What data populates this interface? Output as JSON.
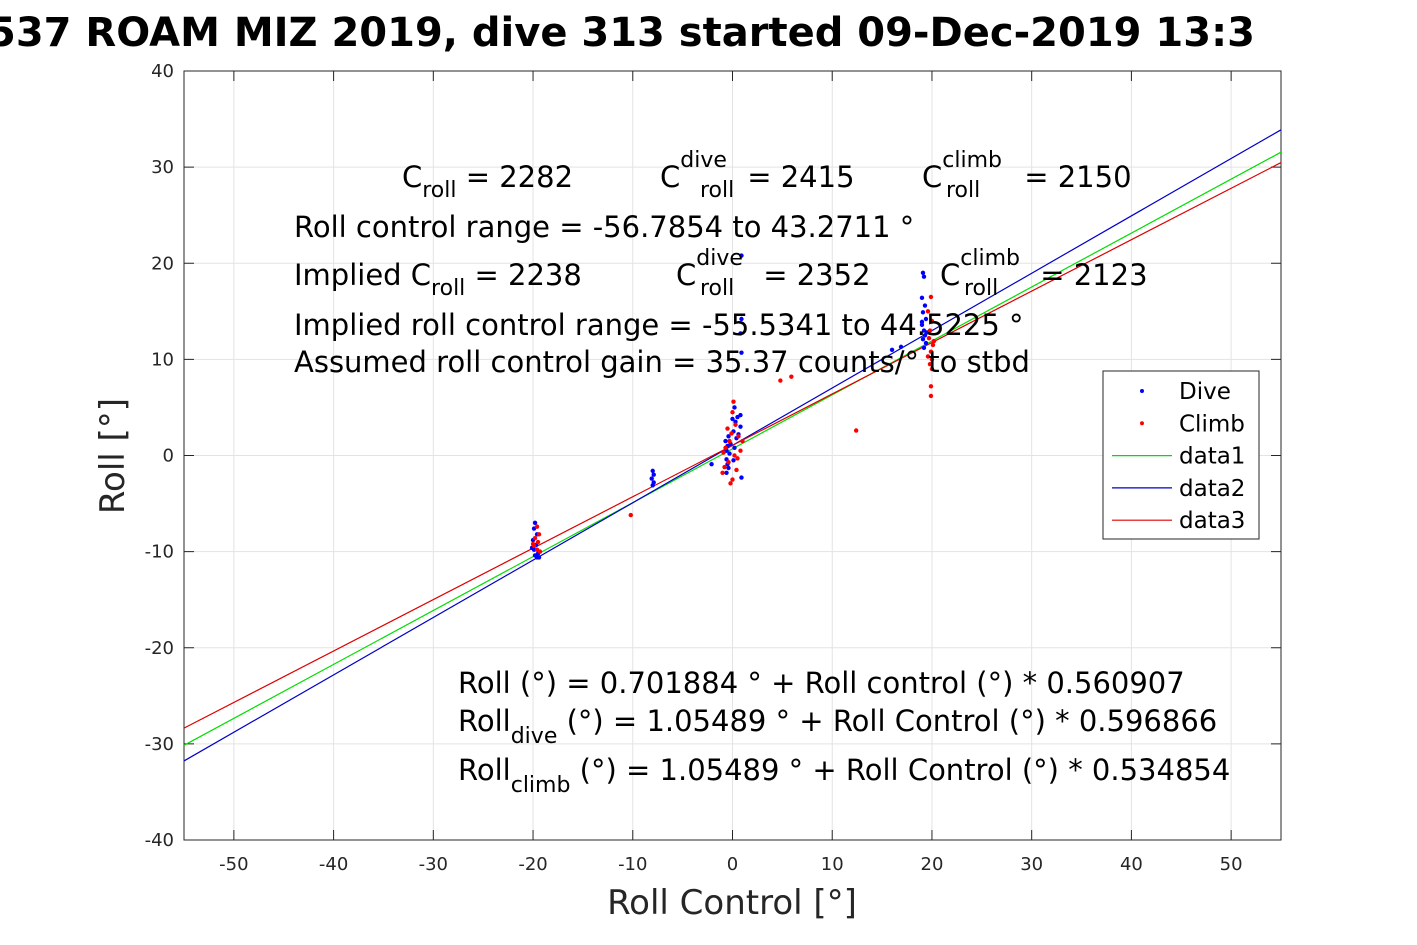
{
  "chart_data": {
    "type": "scatter",
    "title": "537 ROAM MIZ 2019, dive 313 started 09-Dec-2019 13:3",
    "xlabel": "Roll Control [°]",
    "ylabel": "Roll [°]",
    "xlim": [
      -55,
      55
    ],
    "ylim": [
      -40,
      40
    ],
    "grid": true,
    "legend_position": "right",
    "x_ticks": [
      "-50",
      "-40",
      "-30",
      "-20",
      "-10",
      "0",
      "10",
      "20",
      "30",
      "40",
      "50"
    ],
    "y_ticks": [
      "40",
      "30",
      "20",
      "10",
      "0",
      "-10",
      "-20",
      "-30",
      "-40"
    ],
    "series": [
      {
        "name": "Dive",
        "kind": "points",
        "color": "#0000ff",
        "points": [
          [
            -19.8,
            -7.0
          ],
          [
            -19.9,
            -7.6
          ],
          [
            -19.6,
            -8.2
          ],
          [
            -20.0,
            -8.8
          ],
          [
            -19.7,
            -9.3
          ],
          [
            -19.9,
            -9.8
          ],
          [
            -19.5,
            -10.2
          ],
          [
            -19.6,
            -10.6
          ],
          [
            -19.8,
            -10.4
          ],
          [
            -20.1,
            -9.6
          ],
          [
            -8.0,
            -1.6
          ],
          [
            -7.9,
            -2.0
          ],
          [
            -8.1,
            -2.4
          ],
          [
            -7.9,
            -2.8
          ],
          [
            -8.0,
            -3.1
          ],
          [
            -0.6,
            0.5
          ],
          [
            -0.5,
            1.0
          ],
          [
            -0.7,
            1.5
          ],
          [
            -0.4,
            2.0
          ],
          [
            -0.6,
            -0.4
          ],
          [
            -0.5,
            -0.9
          ],
          [
            -0.3,
            0.2
          ],
          [
            -0.2,
            1.2
          ],
          [
            -0.4,
            -1.3
          ],
          [
            -0.6,
            -1.8
          ],
          [
            0.1,
            2.5
          ],
          [
            0.3,
            3.5
          ],
          [
            0.5,
            4.0
          ],
          [
            0.2,
            5.0
          ],
          [
            0.8,
            3.0
          ],
          [
            0.9,
            -2.3
          ],
          [
            0.1,
            -0.5
          ],
          [
            0.2,
            0.8
          ],
          [
            0.4,
            1.8
          ],
          [
            0.0,
            3.8
          ],
          [
            0.6,
            2.2
          ],
          [
            0.8,
            4.2
          ],
          [
            0.9,
            20.8
          ],
          [
            0.9,
            14.2
          ],
          [
            0.8,
            12.7
          ],
          [
            0.9,
            10.7
          ],
          [
            19.1,
            19.0
          ],
          [
            19.2,
            18.6
          ],
          [
            19.0,
            16.4
          ],
          [
            19.3,
            15.6
          ],
          [
            19.1,
            14.9
          ],
          [
            19.4,
            14.2
          ],
          [
            19.0,
            13.6
          ],
          [
            19.2,
            13.0
          ],
          [
            19.3,
            12.5
          ],
          [
            19.1,
            12.1
          ],
          [
            19.4,
            11.7
          ],
          [
            19.2,
            11.2
          ],
          [
            19.0,
            13.9
          ],
          [
            19.5,
            12.8
          ],
          [
            16.0,
            11.0
          ],
          [
            16.9,
            11.3
          ],
          [
            -2.1,
            -0.9
          ],
          [
            -19.4,
            -10.6
          ]
        ]
      },
      {
        "name": "Climb",
        "kind": "points",
        "color": "#ff0000",
        "points": [
          [
            -19.6,
            -7.4
          ],
          [
            -19.4,
            -8.2
          ],
          [
            -19.8,
            -8.6
          ],
          [
            -19.5,
            -9.0
          ],
          [
            -19.9,
            -9.4
          ],
          [
            -19.6,
            -9.8
          ],
          [
            -19.3,
            -10.0
          ],
          [
            -20.0,
            -9.2
          ],
          [
            -10.2,
            -6.2
          ],
          [
            0.1,
            5.6
          ],
          [
            0.0,
            4.5
          ],
          [
            0.3,
            3.2
          ],
          [
            -0.5,
            2.8
          ],
          [
            0.6,
            2.0
          ],
          [
            -0.3,
            1.5
          ],
          [
            -0.7,
            0.8
          ],
          [
            0.2,
            0.0
          ],
          [
            -0.4,
            -0.7
          ],
          [
            -0.8,
            -1.2
          ],
          [
            -1.0,
            -1.8
          ],
          [
            0.0,
            -2.5
          ],
          [
            -0.2,
            -2.9
          ],
          [
            0.4,
            -1.5
          ],
          [
            0.8,
            0.5
          ],
          [
            1.0,
            1.5
          ],
          [
            0.5,
            -0.3
          ],
          [
            -0.9,
            0.3
          ],
          [
            -0.1,
            2.3
          ],
          [
            4.8,
            7.8
          ],
          [
            5.9,
            8.2
          ],
          [
            12.4,
            2.6
          ],
          [
            19.9,
            16.5
          ],
          [
            19.6,
            15.0
          ],
          [
            20.0,
            14.0
          ],
          [
            19.8,
            13.0
          ],
          [
            19.7,
            12.2
          ],
          [
            20.1,
            11.5
          ],
          [
            19.9,
            10.8
          ],
          [
            20.0,
            10.0
          ],
          [
            19.8,
            9.5
          ],
          [
            20.0,
            9.0
          ],
          [
            19.9,
            7.2
          ],
          [
            19.9,
            6.2
          ],
          [
            20.2,
            11.9
          ],
          [
            19.6,
            10.3
          ]
        ]
      },
      {
        "name": "data1",
        "kind": "line",
        "color": "#00dd00",
        "points": [
          [
            -55,
            -30.148
          ],
          [
            55,
            31.552
          ]
        ]
      },
      {
        "name": "data2",
        "kind": "line",
        "color": "#0000c8",
        "points": [
          [
            -55,
            -31.773
          ],
          [
            55,
            33.882
          ]
        ]
      },
      {
        "name": "data3",
        "kind": "line",
        "color": "#dd0000",
        "points": [
          [
            -55,
            -28.362
          ],
          [
            55,
            30.472
          ]
        ]
      }
    ]
  },
  "annotations": {
    "c_roll": "C",
    "c_roll_sub": "roll",
    "c_roll_val": " = 2282",
    "c_dive": "C",
    "c_dive_sup": "dive",
    "c_dive_sub": "roll",
    "c_dive_val": " = 2415",
    "c_climb": "C",
    "c_climb_sup": "climb",
    "c_climb_sub": "roll",
    "c_climb_val": " = 2150",
    "roll_range": "Roll control range = -56.7854 to 43.2711 °",
    "implied_pre": "Implied C",
    "implied_sub": "roll",
    "implied_val": " = 2238",
    "imp_dive": "C",
    "imp_dive_sup": "dive",
    "imp_dive_sub": "roll",
    "imp_dive_val": " = 2352",
    "imp_climb": "C",
    "imp_climb_sup": "climb",
    "imp_climb_sub": "roll",
    "imp_climb_val": " = 2123",
    "implied_range": "Implied roll control range = -55.5341 to 44.5225 °",
    "gain": "Assumed roll control gain = 35.37 counts/° to stbd",
    "fit_all": "Roll (°) = 0.701884 ° + Roll control (°) * 0.560907",
    "fit_dive_pre": "Roll",
    "fit_dive_sub": "dive",
    "fit_dive_post": " (°) = 1.05489 ° + Roll Control (°) * 0.596866",
    "fit_climb_pre": "Roll",
    "fit_climb_sub": "climb",
    "fit_climb_post": " (°) = 1.05489 ° + Roll Control (°) * 0.534854"
  }
}
